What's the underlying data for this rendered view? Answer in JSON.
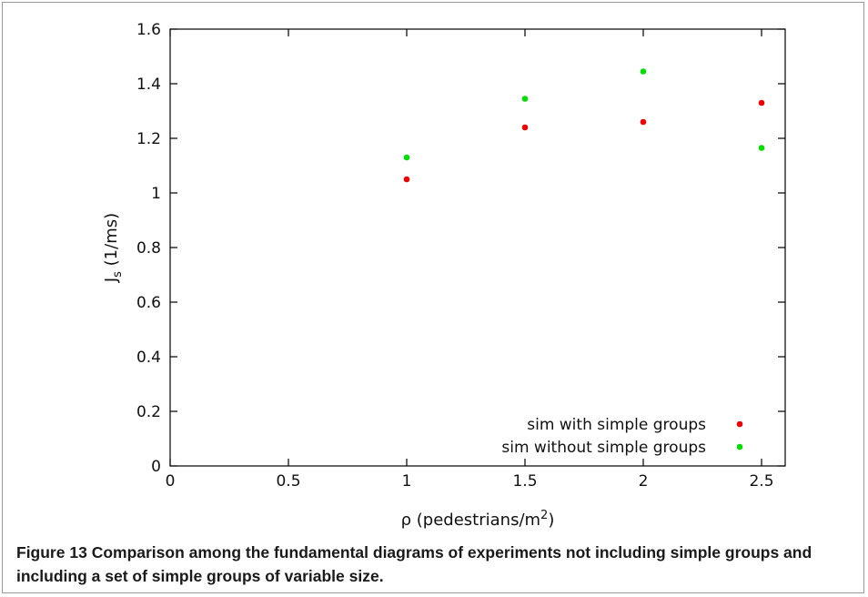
{
  "chart_data": {
    "type": "scatter",
    "title": "",
    "xlabel": "ρ (pedestrians/m",
    "xlabel_sup": "2",
    "xlabel_end": ")",
    "ylabel": "J",
    "ylabel_sub": "s",
    "ylabel_end": " (1/ms)",
    "xlim": [
      0,
      2.6
    ],
    "ylim": [
      0,
      1.6
    ],
    "x_ticks": [
      0,
      0.5,
      1,
      1.5,
      2,
      2.5
    ],
    "x_tick_labels": [
      "0",
      "0.5",
      "1",
      "1.5",
      "2",
      "2.5"
    ],
    "y_ticks": [
      0,
      0.2,
      0.4,
      0.6,
      0.8,
      1,
      1.2,
      1.4,
      1.6
    ],
    "y_tick_labels": [
      "0",
      "0.2",
      "0.4",
      "0.6",
      "0.8",
      "1",
      "1.2",
      "1.4",
      "1.6"
    ],
    "legend_position": "bottom-right",
    "grid": false,
    "series": [
      {
        "name": "sim with simple groups",
        "color": "#ee0000",
        "points": [
          [
            1,
            1.05
          ],
          [
            1.5,
            1.24
          ],
          [
            2,
            1.26
          ],
          [
            2.5,
            1.33
          ]
        ]
      },
      {
        "name": "sim without simple groups",
        "color": "#00dd00",
        "points": [
          [
            1,
            1.13
          ],
          [
            1.5,
            1.345
          ],
          [
            2,
            1.445
          ],
          [
            2.5,
            1.165
          ]
        ]
      }
    ]
  },
  "caption": {
    "label": "Figure 13",
    "text": "Comparison among the fundamental diagrams of experiments not including simple groups and including a set of simple groups of variable size."
  }
}
